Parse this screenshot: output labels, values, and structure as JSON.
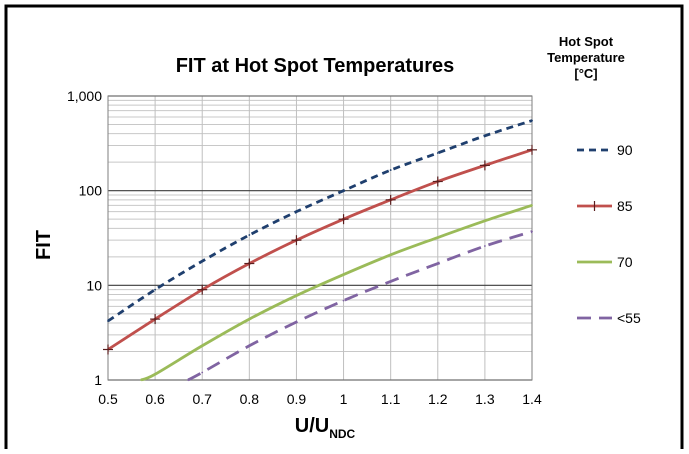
{
  "chart_data": {
    "type": "line",
    "title": "FIT at Hot Spot Temperatures",
    "xlabel_main": "U/U",
    "xlabel_sub": "NDC",
    "ylabel": "FIT",
    "y_scale": "log",
    "ylim": [
      1,
      1000
    ],
    "xlim": [
      0.5,
      1.4
    ],
    "x_ticks": [
      "0.5",
      "0.6",
      "0.7",
      "0.8",
      "0.9",
      "1",
      "1.1",
      "1.2",
      "1.3",
      "1.4"
    ],
    "y_ticks": [
      "1",
      "10",
      "100",
      "1,000"
    ],
    "y_tick_values": [
      1,
      10,
      100,
      1000
    ],
    "grid": true,
    "legend_title": [
      "Hot Spot",
      "Temperature",
      "[°C]"
    ],
    "legend_placement": "right",
    "series": [
      {
        "name": "90",
        "color": "#1f3f6e",
        "style": "dashed",
        "x": [
          0.5,
          0.6,
          0.7,
          0.8,
          0.9,
          1.0,
          1.1,
          1.2,
          1.3,
          1.4
        ],
        "y": [
          4.2,
          9,
          18,
          34,
          60,
          100,
          165,
          250,
          380,
          550
        ]
      },
      {
        "name": "85",
        "color": "#c0504d",
        "style": "solid-marker",
        "x": [
          0.5,
          0.6,
          0.7,
          0.8,
          0.9,
          1.0,
          1.1,
          1.2,
          1.3,
          1.4
        ],
        "y": [
          2.1,
          4.4,
          9,
          17,
          30,
          50,
          80,
          125,
          185,
          270
        ]
      },
      {
        "name": "70",
        "color": "#9bbb59",
        "style": "solid",
        "x": [
          0.57,
          0.6,
          0.7,
          0.8,
          0.9,
          1.0,
          1.1,
          1.2,
          1.3,
          1.4
        ],
        "y": [
          1,
          1.15,
          2.3,
          4.4,
          7.8,
          13,
          21,
          32,
          48,
          70
        ]
      },
      {
        "name": "<55",
        "color": "#8064a2",
        "style": "long-dash",
        "x": [
          0.67,
          0.7,
          0.8,
          0.9,
          1.0,
          1.1,
          1.2,
          1.3,
          1.4
        ],
        "y": [
          1,
          1.2,
          2.3,
          4.1,
          6.9,
          11,
          17,
          26,
          37
        ]
      }
    ]
  }
}
